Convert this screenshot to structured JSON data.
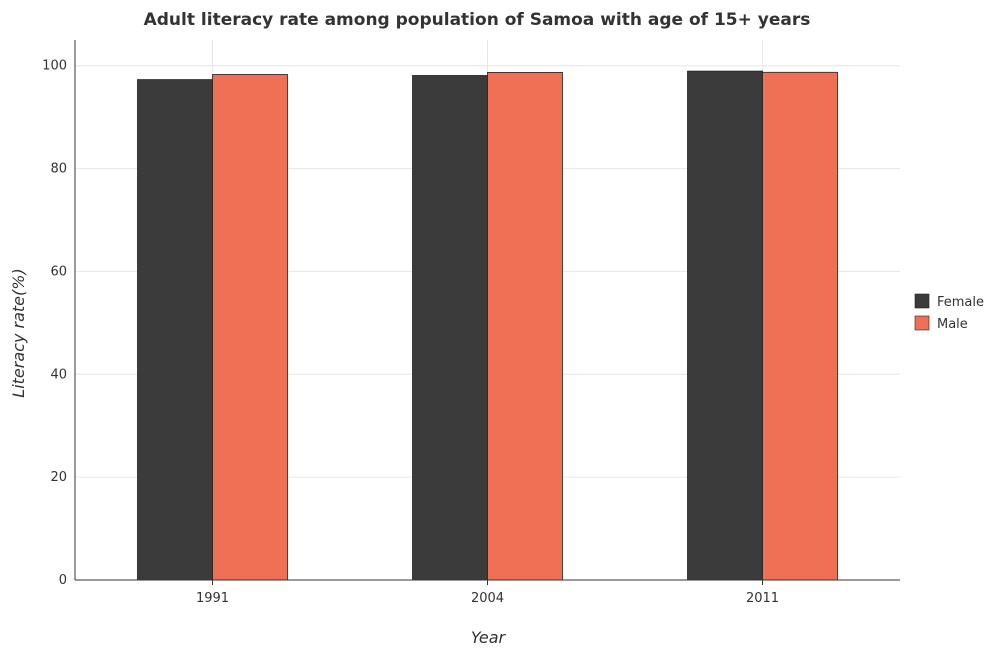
{
  "chart_data": {
    "type": "bar",
    "title": "Adult literacy rate among population of Samoa with age of 15+ years",
    "xlabel": "Year",
    "ylabel": "Literacy rate(%)",
    "categories": [
      "1991",
      "2004",
      "2011"
    ],
    "series": [
      {
        "name": "Female",
        "color": "#3b3b3b",
        "values": [
          97.3,
          98.1,
          98.95
        ]
      },
      {
        "name": "Male",
        "color": "#f07055",
        "values": [
          98.3,
          98.7,
          98.72
        ]
      }
    ],
    "ylim": [
      0,
      105
    ],
    "yticks": [
      "0",
      "20",
      "40",
      "60",
      "80",
      "100"
    ],
    "grid": true,
    "legend_position": "right"
  }
}
